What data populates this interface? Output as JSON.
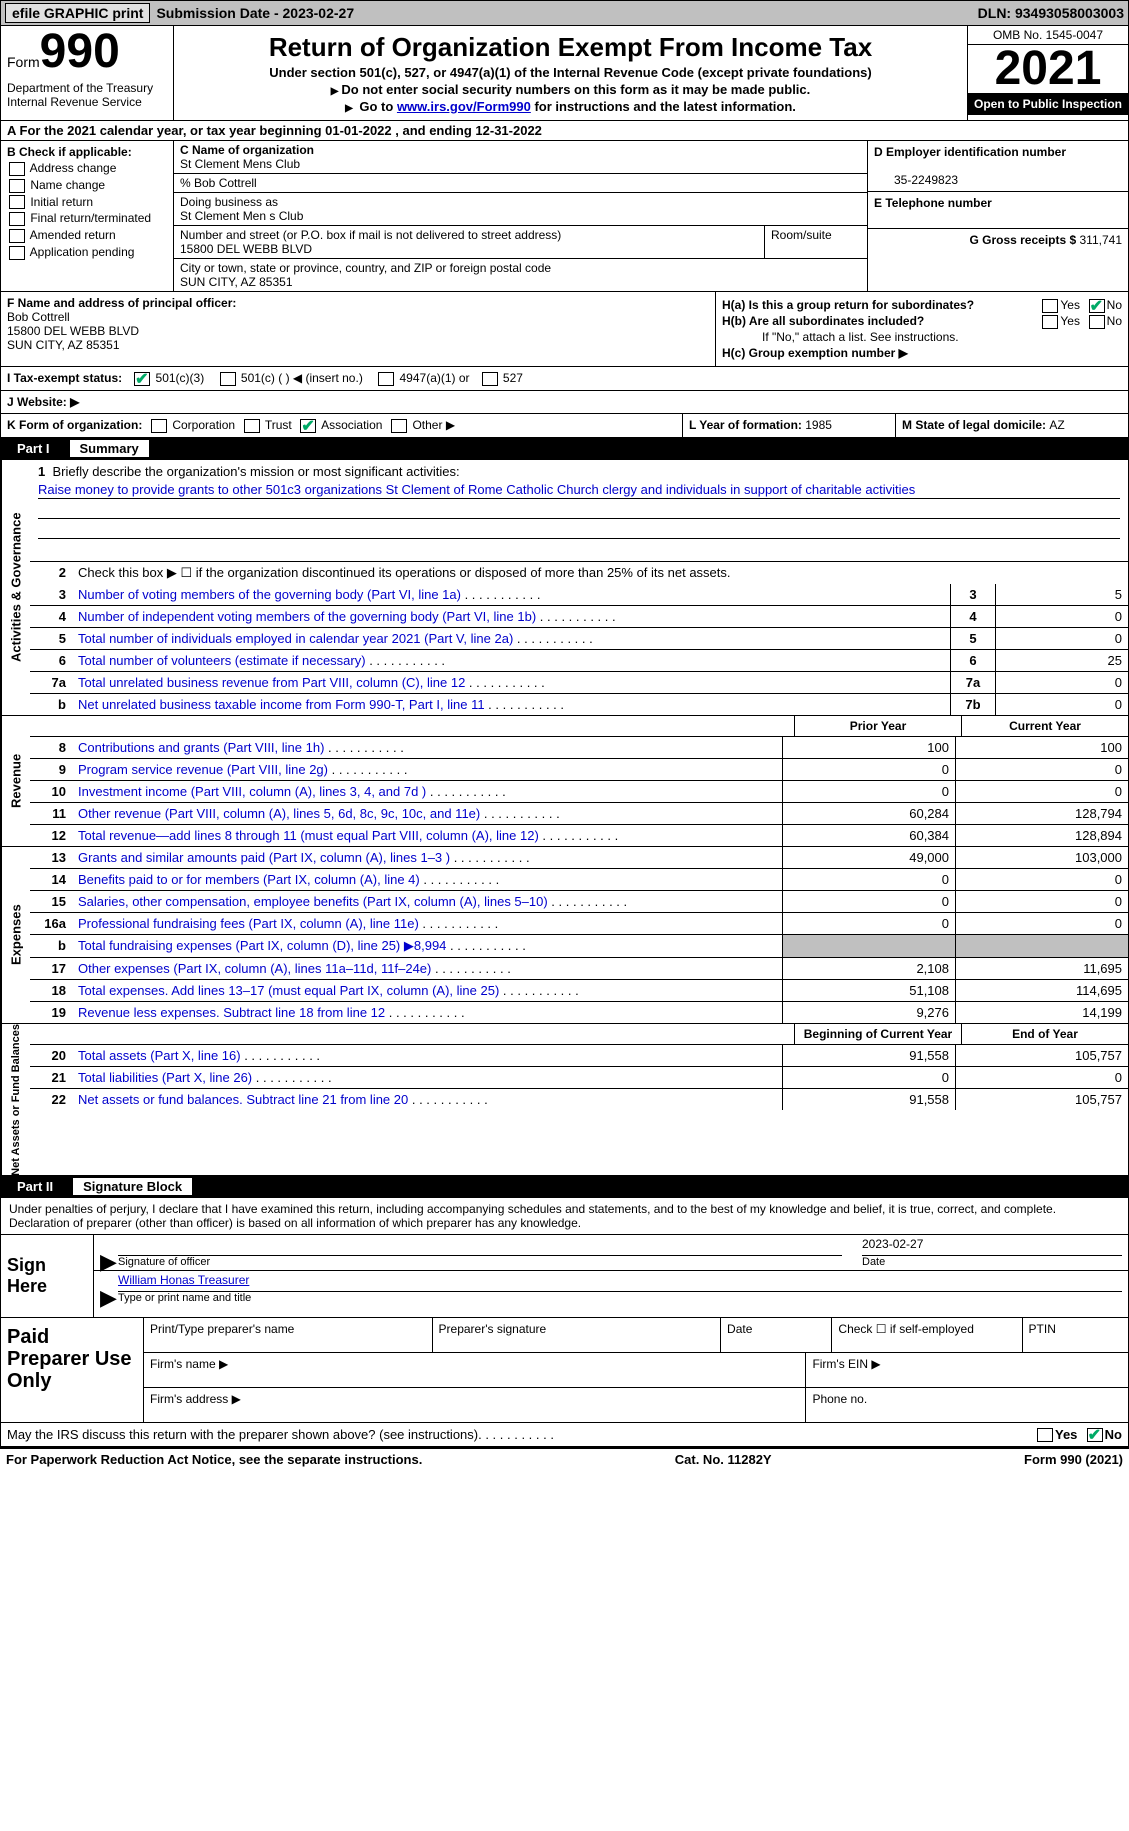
{
  "topbar": {
    "efile": "efile GRAPHIC print",
    "submission_label": "Submission Date - ",
    "submission_date": "2023-02-27",
    "dln": "DLN: 93493058003003"
  },
  "header": {
    "form_label": "Form",
    "form_number": "990",
    "dept": "Department of the Treasury\nInternal Revenue Service",
    "title": "Return of Organization Exempt From Income Tax",
    "subtitle": "Under section 501(c), 527, or 4947(a)(1) of the Internal Revenue Code (except private foundations)",
    "note1": "Do not enter social security numbers on this form as it may be made public.",
    "note2_pre": "Go to ",
    "note2_link": "www.irs.gov/Form990",
    "note2_post": " for instructions and the latest information.",
    "omb": "OMB No. 1545-0047",
    "year": "2021",
    "inspection": "Open to Public Inspection"
  },
  "row_a": "A For the 2021 calendar year, or tax year beginning 01-01-2022    , and ending 12-31-2022",
  "col_b": {
    "label": "B Check if applicable:",
    "opts": [
      "Address change",
      "Name change",
      "Initial return",
      "Final return/terminated",
      "Amended return",
      "Application pending"
    ]
  },
  "org": {
    "c_label": "C Name of organization",
    "name": "St Clement Mens Club",
    "care_of": "% Bob Cottrell",
    "dba_label": "Doing business as",
    "dba": "St Clement Men s Club",
    "addr_label": "Number and street (or P.O. box if mail is not delivered to street address)",
    "room_label": "Room/suite",
    "addr": "15800 DEL WEBB BLVD",
    "city_label": "City or town, state or province, country, and ZIP or foreign postal code",
    "city": "SUN CITY, AZ  85351"
  },
  "col_d": {
    "d_label": "D Employer identification number",
    "ein": "35-2249823",
    "e_label": "E Telephone number",
    "g_label": "G Gross receipts $ ",
    "g_val": "311,741"
  },
  "officer": {
    "f_label": "F  Name and address of principal officer:",
    "name": "Bob Cottrell",
    "addr1": "15800 DEL WEBB BLVD",
    "addr2": "SUN CITY, AZ  85351"
  },
  "h": {
    "a": "H(a)  Is this a group return for subordinates?",
    "b": "H(b)  Are all subordinates included?",
    "b_note": "If \"No,\" attach a list. See instructions.",
    "c": "H(c)  Group exemption number ▶",
    "yes": "Yes",
    "no": "No"
  },
  "tax_status": {
    "i": "I  Tax-exempt status:",
    "opts": [
      "501(c)(3)",
      "501(c) (  ) ◀ (insert no.)",
      "4947(a)(1) or",
      "527"
    ],
    "j": "J  Website: ▶"
  },
  "row_k": {
    "k": "K Form of organization:",
    "opts": [
      "Corporation",
      "Trust",
      "Association",
      "Other ▶"
    ],
    "l": "L Year of formation: ",
    "l_val": "1985",
    "m": "M State of legal domicile: ",
    "m_val": "AZ"
  },
  "part1": {
    "num": "Part I",
    "title": "Summary",
    "side_ag": "Activities & Governance",
    "side_rev": "Revenue",
    "side_exp": "Expenses",
    "side_net": "Net Assets or Fund Balances",
    "q1": "Briefly describe the organization's mission or most significant activities:",
    "mission": "Raise money to provide grants to other 501c3 organizations St Clement of Rome Catholic Church clergy and individuals in support of charitable activities",
    "q2": "Check this box ▶ ☐  if the organization discontinued its operations or disposed of more than 25% of its net assets.",
    "lines_single": [
      {
        "n": "3",
        "t": "Number of voting members of the governing body (Part VI, line 1a)",
        "box": "3",
        "v": "5"
      },
      {
        "n": "4",
        "t": "Number of independent voting members of the governing body (Part VI, line 1b)",
        "box": "4",
        "v": "0"
      },
      {
        "n": "5",
        "t": "Total number of individuals employed in calendar year 2021 (Part V, line 2a)",
        "box": "5",
        "v": "0"
      },
      {
        "n": "6",
        "t": "Total number of volunteers (estimate if necessary)",
        "box": "6",
        "v": "25"
      },
      {
        "n": "7a",
        "t": "Total unrelated business revenue from Part VIII, column (C), line 12",
        "box": "7a",
        "v": "0"
      },
      {
        "n": "b",
        "t": "Net unrelated business taxable income from Form 990-T, Part I, line 11",
        "box": "7b",
        "v": "0"
      }
    ],
    "hdr_prior": "Prior Year",
    "hdr_curr": "Current Year",
    "revenue": [
      {
        "n": "8",
        "t": "Contributions and grants (Part VIII, line 1h)",
        "p": "100",
        "c": "100"
      },
      {
        "n": "9",
        "t": "Program service revenue (Part VIII, line 2g)",
        "p": "0",
        "c": "0"
      },
      {
        "n": "10",
        "t": "Investment income (Part VIII, column (A), lines 3, 4, and 7d )",
        "p": "0",
        "c": "0"
      },
      {
        "n": "11",
        "t": "Other revenue (Part VIII, column (A), lines 5, 6d, 8c, 9c, 10c, and 11e)",
        "p": "60,284",
        "c": "128,794"
      },
      {
        "n": "12",
        "t": "Total revenue—add lines 8 through 11 (must equal Part VIII, column (A), line 12)",
        "p": "60,384",
        "c": "128,894"
      }
    ],
    "expenses": [
      {
        "n": "13",
        "t": "Grants and similar amounts paid (Part IX, column (A), lines 1–3 )",
        "p": "49,000",
        "c": "103,000",
        "grey": false
      },
      {
        "n": "14",
        "t": "Benefits paid to or for members (Part IX, column (A), line 4)",
        "p": "0",
        "c": "0",
        "grey": false
      },
      {
        "n": "15",
        "t": "Salaries, other compensation, employee benefits (Part IX, column (A), lines 5–10)",
        "p": "0",
        "c": "0",
        "grey": false
      },
      {
        "n": "16a",
        "t": "Professional fundraising fees (Part IX, column (A), line 11e)",
        "p": "0",
        "c": "0",
        "grey": false
      },
      {
        "n": "b",
        "t": "Total fundraising expenses (Part IX, column (D), line 25) ▶8,994",
        "p": "",
        "c": "",
        "grey": true
      },
      {
        "n": "17",
        "t": "Other expenses (Part IX, column (A), lines 11a–11d, 11f–24e)",
        "p": "2,108",
        "c": "11,695",
        "grey": false
      },
      {
        "n": "18",
        "t": "Total expenses. Add lines 13–17 (must equal Part IX, column (A), line 25)",
        "p": "51,108",
        "c": "114,695",
        "grey": false
      },
      {
        "n": "19",
        "t": "Revenue less expenses. Subtract line 18 from line 12",
        "p": "9,276",
        "c": "14,199",
        "grey": false
      }
    ],
    "hdr_begin": "Beginning of Current Year",
    "hdr_end": "End of Year",
    "net": [
      {
        "n": "20",
        "t": "Total assets (Part X, line 16)",
        "p": "91,558",
        "c": "105,757"
      },
      {
        "n": "21",
        "t": "Total liabilities (Part X, line 26)",
        "p": "0",
        "c": "0"
      },
      {
        "n": "22",
        "t": "Net assets or fund balances. Subtract line 21 from line 20",
        "p": "91,558",
        "c": "105,757"
      }
    ]
  },
  "part2": {
    "num": "Part II",
    "title": "Signature Block",
    "pen": "Under penalties of perjury, I declare that I have examined this return, including accompanying schedules and statements, and to the best of my knowledge and belief, it is true, correct, and complete. Declaration of preparer (other than officer) is based on all information of which preparer has any knowledge.",
    "sign_here": "Sign Here",
    "sig_of_officer": "Signature of officer",
    "date_label": "Date",
    "sig_date": "2023-02-27",
    "printed": "William Honas  Treasurer",
    "printed_label": "Type or print name and title",
    "paid": "Paid Preparer Use Only",
    "pp_name": "Print/Type preparer's name",
    "pp_sig": "Preparer's signature",
    "pp_date": "Date",
    "pp_check": "Check ☐ if self-employed",
    "ptin": "PTIN",
    "firm_name": "Firm's name  ▶",
    "firm_ein": "Firm's EIN ▶",
    "firm_addr": "Firm's address ▶",
    "phone": "Phone no.",
    "irs_q": "May the IRS discuss this return with the preparer shown above? (see instructions)",
    "footer_l": "For Paperwork Reduction Act Notice, see the separate instructions.",
    "footer_m": "Cat. No. 11282Y",
    "footer_r": "Form 990 (2021)"
  }
}
